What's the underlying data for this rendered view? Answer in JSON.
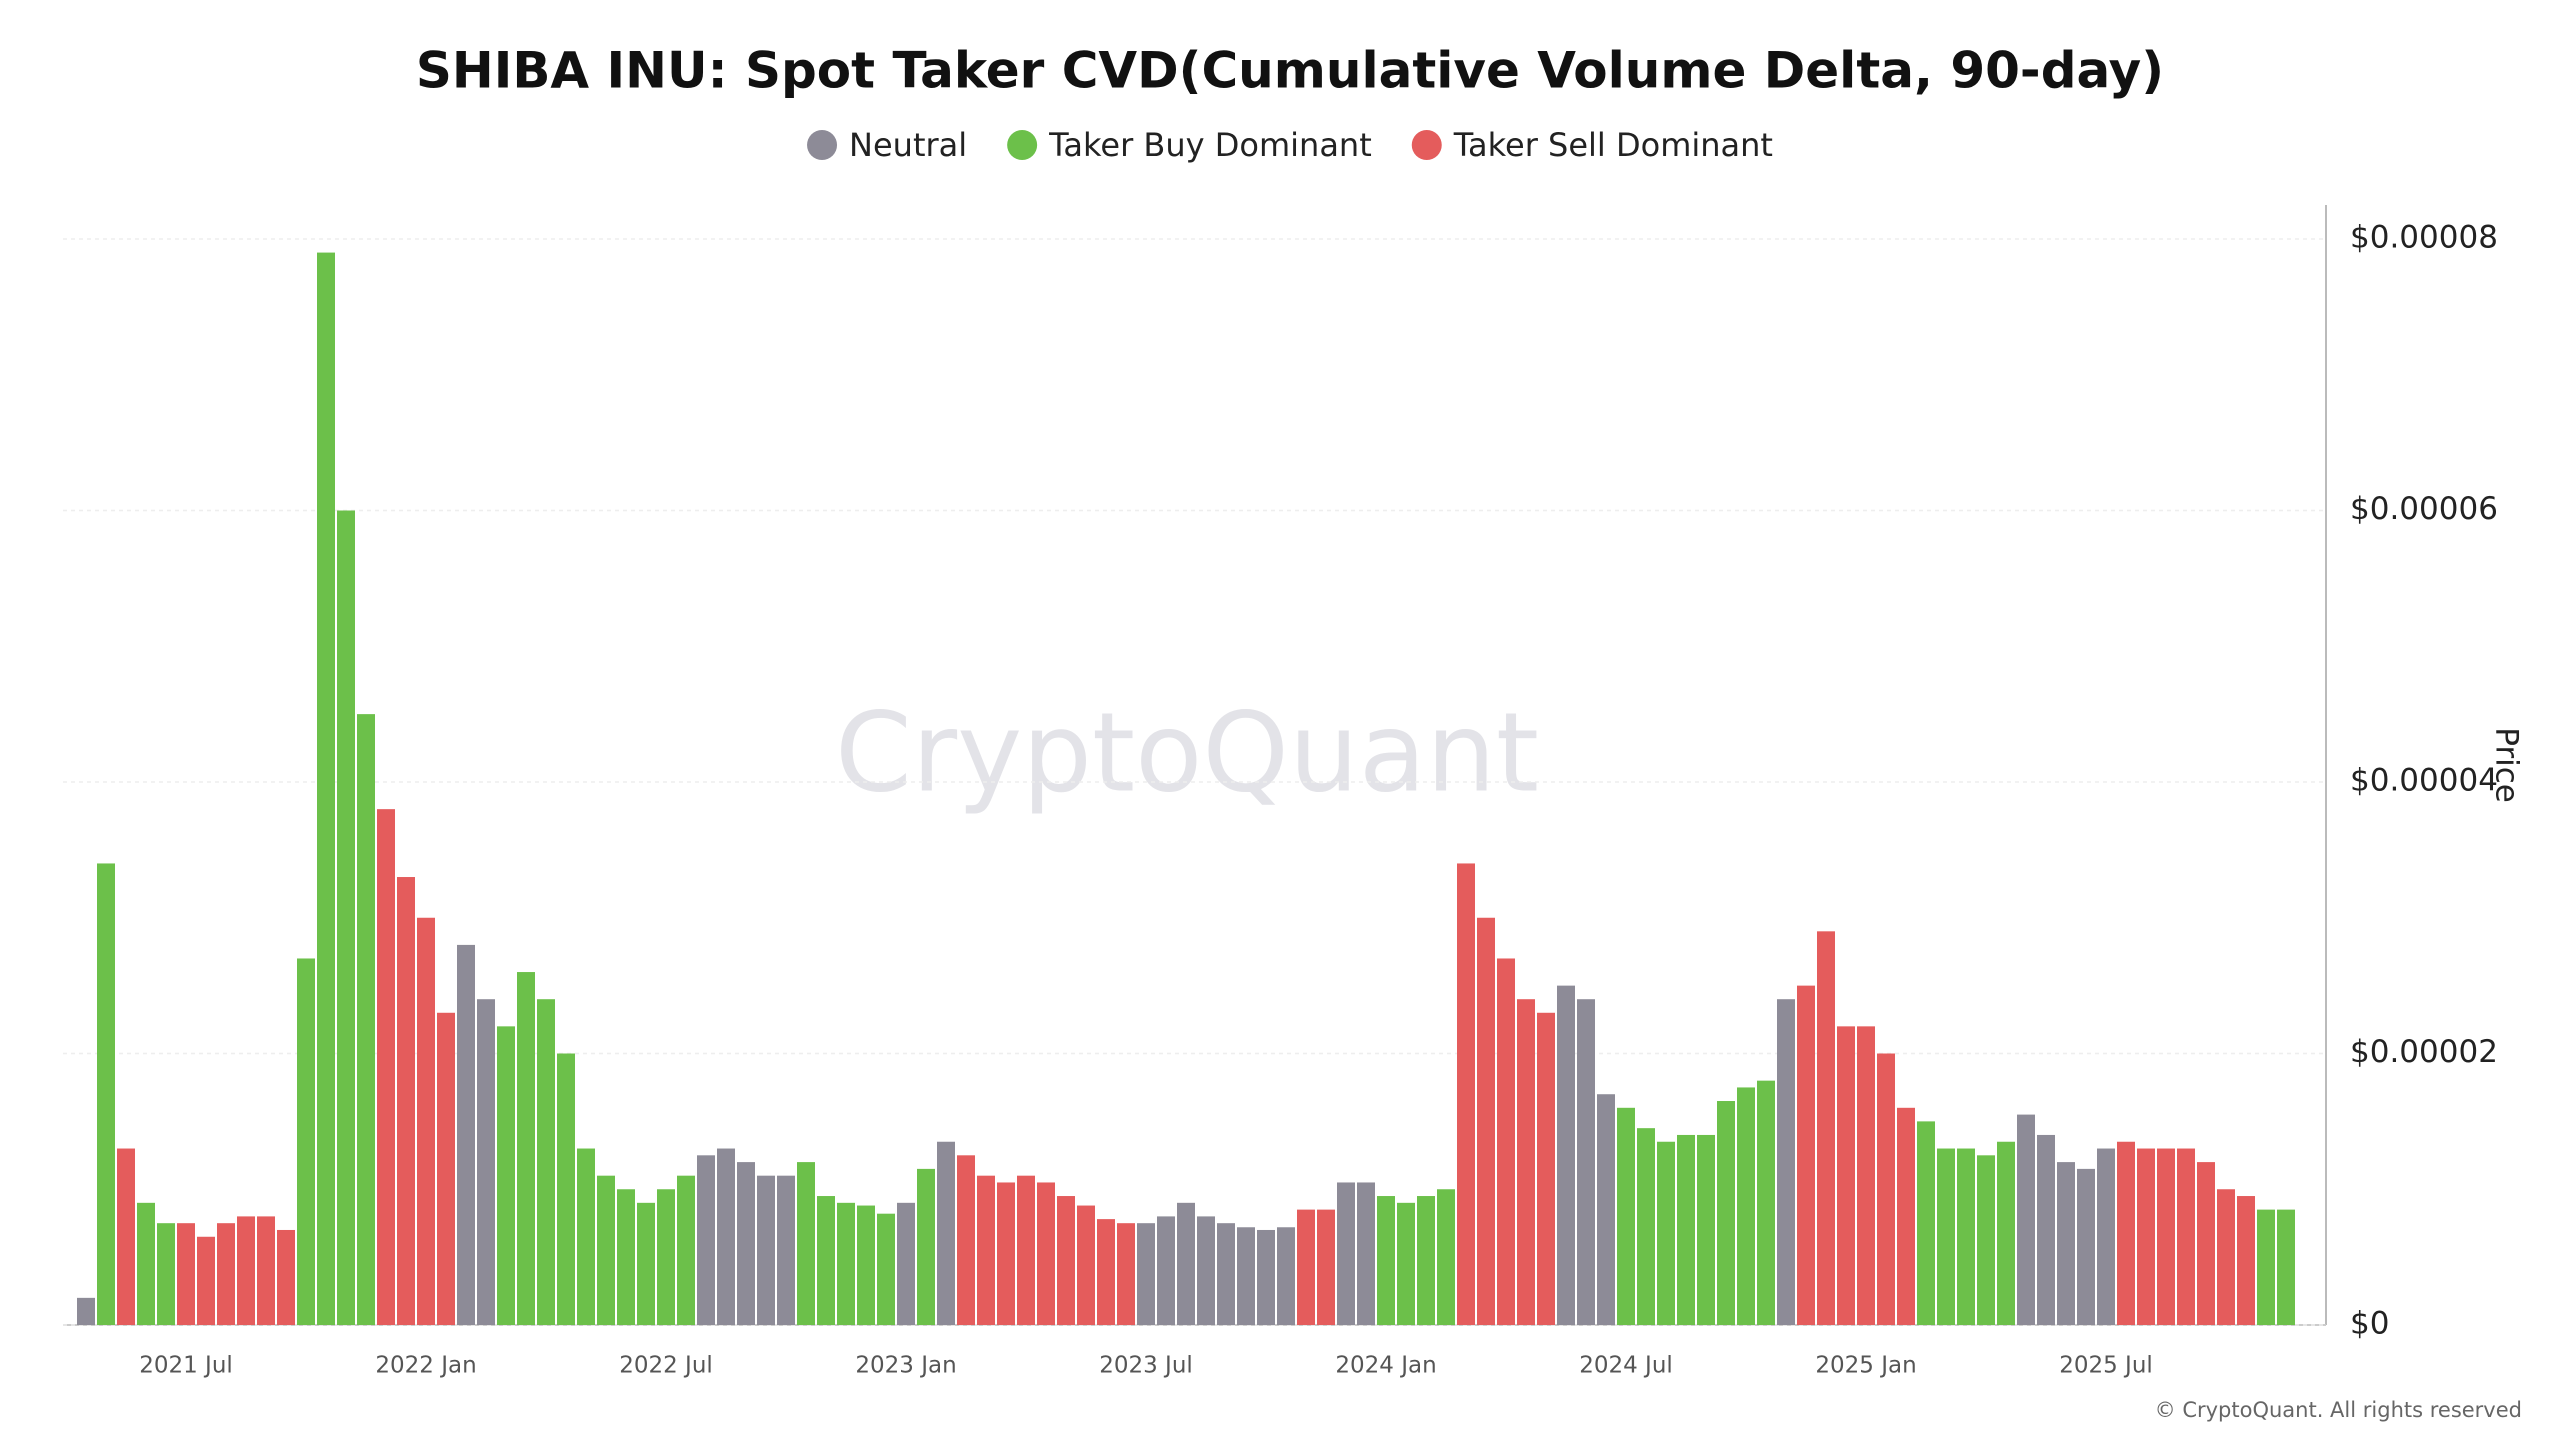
{
  "chart_data": {
    "type": "bar",
    "title": "SHIBA INU: Spot Taker CVD(Cumulative Volume Delta, 90-day)",
    "y_axis_label": "Price",
    "watermark": "CryptoQuant",
    "credit": "© CryptoQuant. All rights reserved",
    "ylim": [
      0,
      8e-05
    ],
    "yticks": [
      {
        "value": 0,
        "label": "$0"
      },
      {
        "value": 2e-05,
        "label": "$0.00002"
      },
      {
        "value": 4e-05,
        "label": "$0.00004"
      },
      {
        "value": 6e-05,
        "label": "$0.00006"
      },
      {
        "value": 8e-05,
        "label": "$0.00008"
      }
    ],
    "grid": true,
    "legend": "top",
    "categories": [
      null,
      null,
      null,
      null,
      null,
      "2021 Jul",
      null,
      null,
      null,
      null,
      null,
      null,
      null,
      null,
      null,
      null,
      null,
      "2022 Jan",
      null,
      null,
      null,
      null,
      null,
      null,
      null,
      null,
      null,
      null,
      null,
      "2022 Jul",
      null,
      null,
      null,
      null,
      null,
      null,
      null,
      null,
      null,
      null,
      null,
      "2023 Jan",
      null,
      null,
      null,
      null,
      null,
      null,
      null,
      null,
      null,
      null,
      null,
      "2023 Jul",
      null,
      null,
      null,
      null,
      null,
      null,
      null,
      null,
      null,
      null,
      null,
      "2024 Jan",
      null,
      null,
      null,
      null,
      null,
      null,
      null,
      null,
      null,
      null,
      null,
      "2024 Jul",
      null,
      null,
      null,
      null,
      null,
      null,
      null,
      null,
      null,
      null,
      null,
      "2025 Jan",
      null,
      null,
      null,
      null,
      null,
      null,
      null,
      null,
      null,
      null,
      null,
      "2025 Jul",
      null,
      null,
      null,
      null,
      null,
      null,
      null,
      null,
      null
    ],
    "series": [
      {
        "name": "Neutral",
        "color": "#8d8b97",
        "values": [
          2e-06,
          null,
          null,
          null,
          null,
          null,
          null,
          null,
          null,
          null,
          null,
          null,
          null,
          null,
          null,
          null,
          null,
          null,
          null,
          2.8e-05,
          2.4e-05,
          null,
          null,
          null,
          null,
          null,
          null,
          null,
          null,
          null,
          null,
          1.25e-05,
          1.3e-05,
          1.2e-05,
          1.1e-05,
          1.1e-05,
          null,
          null,
          null,
          null,
          null,
          9e-06,
          null,
          1.35e-05,
          null,
          null,
          null,
          null,
          null,
          null,
          null,
          null,
          null,
          7.5e-06,
          8e-06,
          9e-06,
          8e-06,
          7.5e-06,
          7.2e-06,
          7e-06,
          7.2e-06,
          null,
          null,
          1.05e-05,
          1.05e-05,
          null,
          null,
          null,
          null,
          null,
          null,
          null,
          null,
          null,
          2.5e-05,
          2.4e-05,
          1.7e-05,
          null,
          null,
          null,
          null,
          null,
          null,
          null,
          null,
          2.4e-05,
          null,
          null,
          null,
          null,
          null,
          null,
          null,
          null,
          null,
          null,
          null,
          1.55e-05,
          1.4e-05,
          1.2e-05,
          1.15e-05,
          1.3e-05,
          null,
          null,
          null,
          null,
          null,
          null,
          null,
          null,
          null
        ]
      },
      {
        "name": "Taker Buy Dominant",
        "color": "#6cc04a",
        "values": [
          null,
          3.4e-05,
          null,
          9e-06,
          7.5e-06,
          null,
          null,
          null,
          null,
          null,
          null,
          2.7e-05,
          7.9e-05,
          6e-05,
          4.5e-05,
          null,
          null,
          null,
          null,
          null,
          null,
          2.2e-05,
          2.6e-05,
          2.4e-05,
          2e-05,
          1.3e-05,
          1.1e-05,
          1e-05,
          9e-06,
          1e-05,
          1.1e-05,
          null,
          null,
          null,
          null,
          null,
          1.2e-05,
          9.5e-06,
          9e-06,
          8.8e-06,
          8.2e-06,
          null,
          1.15e-05,
          null,
          null,
          null,
          null,
          null,
          null,
          null,
          null,
          null,
          null,
          null,
          null,
          null,
          null,
          null,
          null,
          null,
          null,
          null,
          null,
          null,
          null,
          9.5e-06,
          9e-06,
          9.5e-06,
          1e-05,
          null,
          null,
          null,
          null,
          null,
          null,
          null,
          null,
          1.6e-05,
          1.45e-05,
          1.35e-05,
          1.4e-05,
          1.4e-05,
          1.65e-05,
          1.75e-05,
          1.8e-05,
          null,
          null,
          null,
          null,
          null,
          null,
          null,
          1.5e-05,
          1.3e-05,
          1.3e-05,
          1.25e-05,
          1.35e-05,
          null,
          null,
          null,
          null,
          null,
          null,
          null,
          null,
          null,
          null,
          null,
          null,
          8.5e-06,
          8.5e-06
        ]
      },
      {
        "name": "Taker Sell Dominant",
        "color": "#e45c5c",
        "values": [
          null,
          null,
          1.3e-05,
          null,
          null,
          7.5e-06,
          6.5e-06,
          7.5e-06,
          8e-06,
          8e-06,
          7e-06,
          null,
          null,
          null,
          null,
          3.8e-05,
          3.3e-05,
          3e-05,
          2.3e-05,
          null,
          null,
          null,
          null,
          null,
          null,
          null,
          null,
          null,
          null,
          null,
          null,
          null,
          null,
          null,
          null,
          null,
          null,
          null,
          null,
          null,
          null,
          null,
          null,
          null,
          1.25e-05,
          1.1e-05,
          1.05e-05,
          1.1e-05,
          1.05e-05,
          9.5e-06,
          8.8e-06,
          7.8e-06,
          7.5e-06,
          null,
          null,
          null,
          null,
          null,
          null,
          null,
          null,
          8.5e-06,
          8.5e-06,
          null,
          null,
          null,
          null,
          null,
          null,
          3.4e-05,
          3e-05,
          2.7e-05,
          2.4e-05,
          2.3e-05,
          null,
          null,
          null,
          null,
          null,
          null,
          null,
          null,
          null,
          null,
          null,
          null,
          2.5e-05,
          2.9e-05,
          2.2e-05,
          2.2e-05,
          2e-05,
          1.6e-05,
          null,
          null,
          null,
          null,
          null,
          null,
          null,
          null,
          null,
          null,
          1.35e-05,
          1.3e-05,
          1.3e-05,
          1.3e-05,
          1.2e-05,
          1e-05,
          9.5e-06,
          null,
          null
        ]
      }
    ]
  }
}
